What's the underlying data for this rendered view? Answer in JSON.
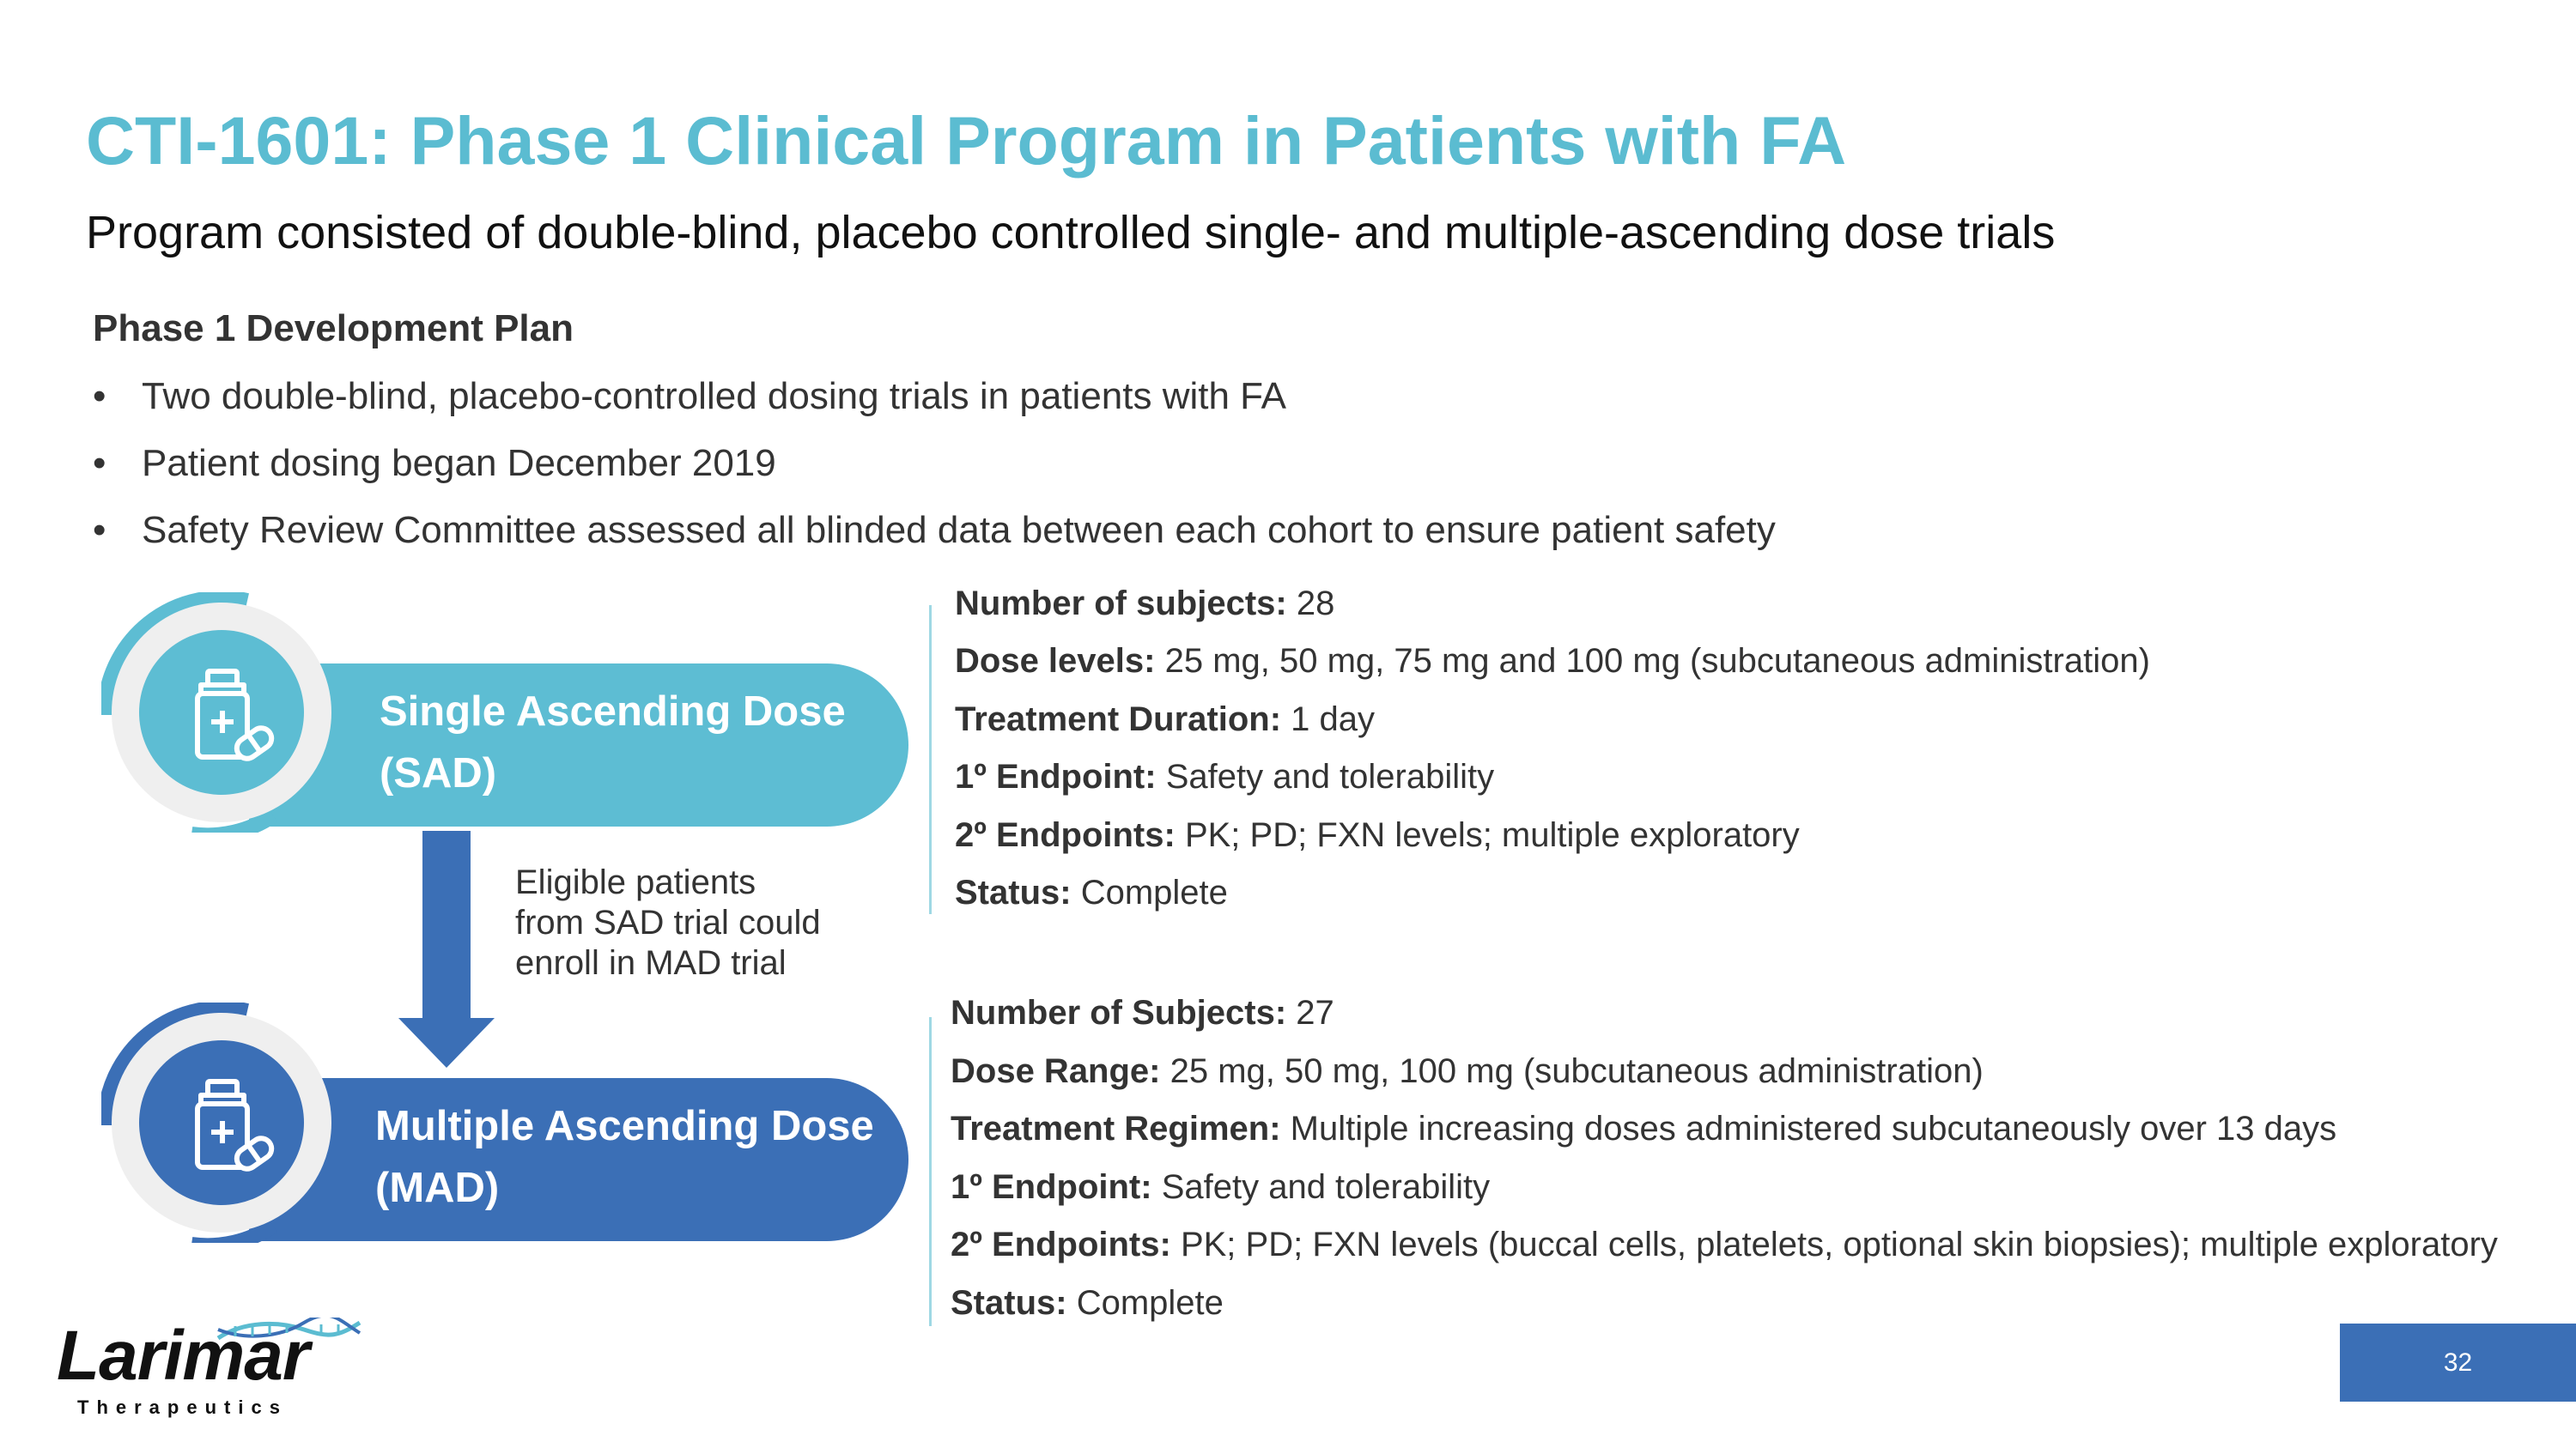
{
  "title": "CTI-1601: Phase 1 Clinical Program in Patients with FA",
  "subtitle": "Program consisted of double-blind, placebo controlled single- and multiple-ascending dose trials",
  "plan": {
    "heading": "Phase 1 Development Plan",
    "bullets": [
      "Two double-blind, placebo-controlled dosing trials in patients with FA",
      "Patient dosing began December 2019",
      "Safety Review Committee assessed all blinded data between each cohort to ensure patient safety"
    ]
  },
  "sad": {
    "line1": "Single Ascending Dose",
    "line2": "(SAD)",
    "icon": "medicine-bottle-icon",
    "details": [
      {
        "label": "Number of subjects:",
        "value": " 28"
      },
      {
        "label": "Dose levels:",
        "value": " 25 mg, 50 mg, 75 mg and 100 mg (subcutaneous administration)"
      },
      {
        "label": "Treatment Duration:",
        "value": " 1 day"
      },
      {
        "label": "1º Endpoint:",
        "value": " Safety and tolerability"
      },
      {
        "label": "2º  Endpoints:",
        "value": " PK; PD; FXN levels; multiple exploratory"
      },
      {
        "label": "Status:",
        "value": " Complete"
      }
    ]
  },
  "transition": {
    "lines": [
      "Eligible patients",
      "from SAD trial could",
      "enroll in MAD trial"
    ]
  },
  "mad": {
    "line1": "Multiple Ascending Dose",
    "line2": "(MAD)",
    "icon": "medicine-bottle-icon",
    "details": [
      {
        "label": "Number of Subjects:",
        "value": " 27"
      },
      {
        "label": "Dose Range:",
        "value": " 25 mg, 50 mg, 100 mg (subcutaneous administration)"
      },
      {
        "label": "Treatment Regimen:",
        "value": " Multiple increasing doses administered subcutaneously over 13 days"
      },
      {
        "label": "1º Endpoint:",
        "value": " Safety and tolerability"
      },
      {
        "label": "2º  Endpoints:",
        "value": " PK; PD; FXN levels (buccal cells, platelets, optional skin biopsies); multiple exploratory"
      },
      {
        "label": "Status:",
        "value": " Complete"
      }
    ]
  },
  "logo": {
    "word": "Larimar",
    "sub": "Therapeutics"
  },
  "page_number": "32",
  "colors": {
    "title": "#5bbcd1",
    "sad": "#5dbdd3",
    "mad": "#3b6fb6",
    "ring": "#efefef"
  }
}
